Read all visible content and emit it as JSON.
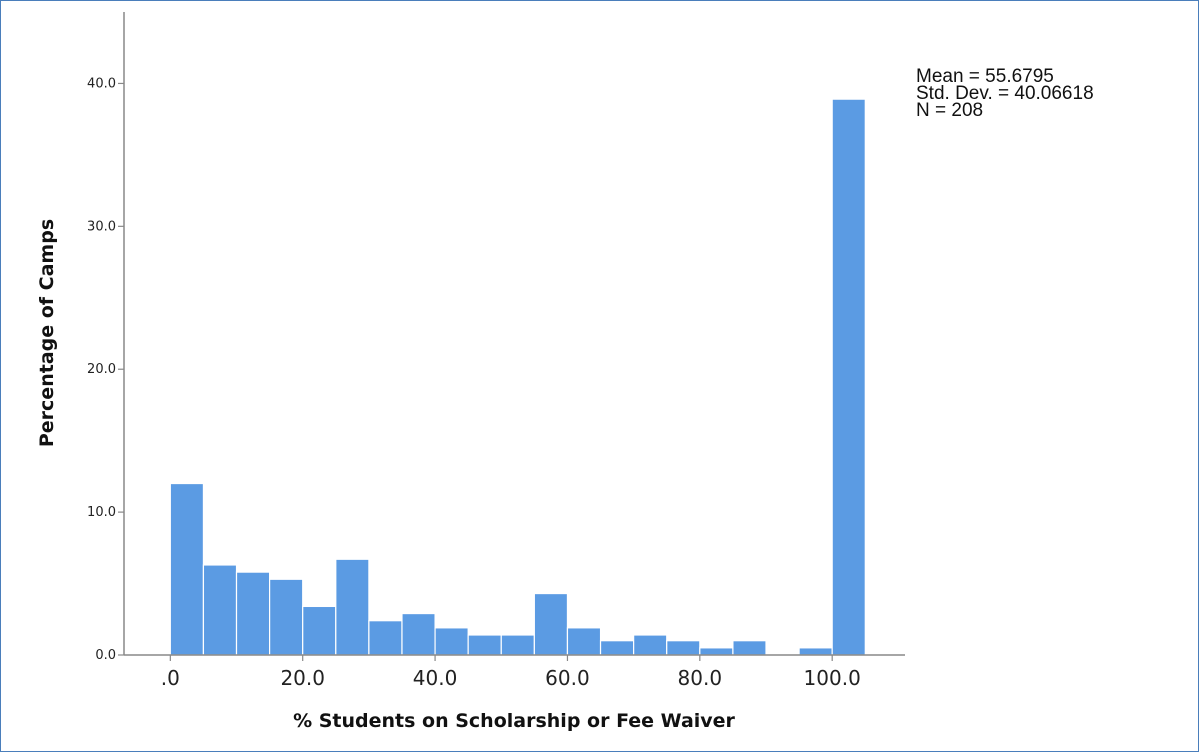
{
  "chart_data": {
    "type": "bar",
    "histogram": true,
    "title": "",
    "xlabel": "% Students on Scholarship or Fee Waiver",
    "ylabel": "Percentage of Camps",
    "xlim": [
      -7,
      111
    ],
    "ylim": [
      0,
      45
    ],
    "bin_width": 5,
    "bin_starts": [
      0,
      5,
      10,
      15,
      20,
      25,
      30,
      35,
      40,
      45,
      50,
      55,
      60,
      65,
      70,
      75,
      80,
      85,
      90,
      95,
      100
    ],
    "values": [
      12.0,
      6.3,
      5.8,
      5.3,
      3.4,
      6.7,
      2.4,
      2.9,
      1.9,
      1.4,
      1.4,
      4.3,
      1.9,
      1.0,
      1.4,
      1.0,
      0.5,
      1.0,
      0.0,
      0.5,
      38.9
    ],
    "x_ticks": [
      0,
      20,
      40,
      60,
      80,
      100
    ],
    "x_tick_labels": [
      ".0",
      "20.0",
      "40.0",
      "60.0",
      "80.0",
      "100.0"
    ],
    "y_ticks": [
      0,
      10,
      20,
      30,
      40
    ],
    "y_tick_labels": [
      "0.0",
      "10.0",
      "20.0",
      "30.0",
      "40.0"
    ],
    "grid": false,
    "bar_color": "#5b9be3",
    "bar_edge_color": "#ffffff",
    "axis_color": "#888888",
    "stats_placement": "top-right",
    "stats": [
      "Mean = 55.6795",
      "Std. Dev. = 40.06618",
      "N = 208"
    ]
  }
}
